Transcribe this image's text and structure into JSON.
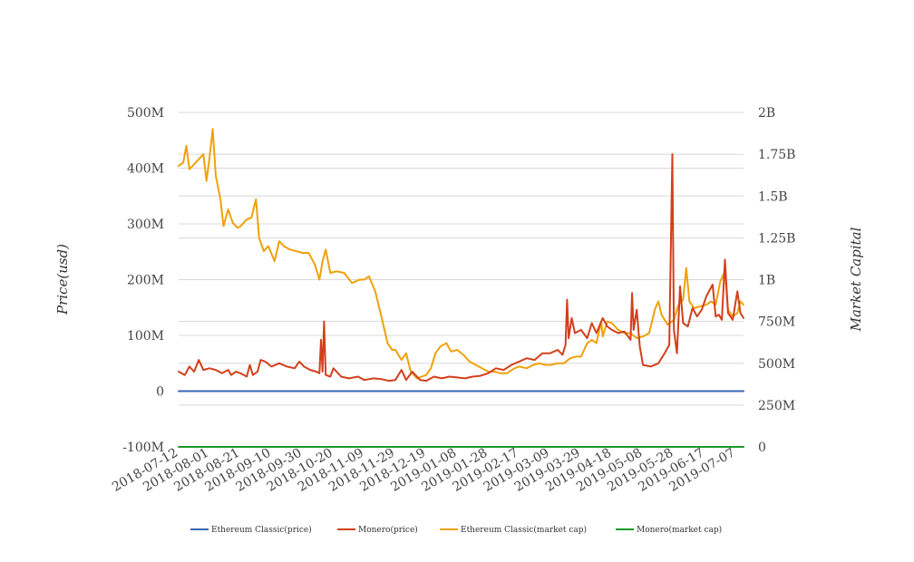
{
  "chart_data": {
    "type": "line",
    "title": "",
    "ylabel": "Price(usd)",
    "ylabel_right": "Market Capital",
    "x_ticks": [
      "2018-07-12",
      "2018-08-01",
      "2018-08-21",
      "2018-09-10",
      "2018-09-30",
      "2018-10-20",
      "2018-11-09",
      "2018-11-29",
      "2018-12-19",
      "2019-01-08",
      "2019-01-28",
      "2019-02-17",
      "2019-03-09",
      "2019-03-29",
      "2019-04-18",
      "2019-05-08",
      "2019-05-28",
      "2019-06-17",
      "2019-07-07"
    ],
    "x_range": [
      "2018-07-12",
      "2019-07-12"
    ],
    "y_left": {
      "range": [
        -100000000,
        500000000
      ],
      "ticks": [
        "500M",
        "400M",
        "300M",
        "200M",
        "100M",
        "0",
        "-100M"
      ]
    },
    "y_right": {
      "range": [
        0,
        2000000000
      ],
      "ticks": [
        "2B",
        "1.75B",
        "1.5B",
        "1.25B",
        "1B",
        "750M",
        "500M",
        "250M",
        "0"
      ]
    },
    "grid": true,
    "legend_position": "bottom",
    "colors": {
      "etc_price": "#3a64b5",
      "xmr_price": "#d2401c",
      "etc_mcap": "#f0a10a",
      "xmr_mcap": "#1a9a28",
      "grid": "#d8d8d8"
    },
    "series": [
      {
        "name": "Ethereum Classic(price)",
        "axis": "left",
        "color": "#3a64b5",
        "points": [
          [
            "2018-07-12",
            0
          ],
          [
            "2019-07-12",
            0
          ]
        ]
      },
      {
        "name": "Monero(price)",
        "axis": "right",
        "color": "#d2401c",
        "points": [
          [
            "2018-07-12",
            450000000
          ],
          [
            "2018-07-16",
            430000000
          ],
          [
            "2018-07-19",
            480000000
          ],
          [
            "2018-07-22",
            450000000
          ],
          [
            "2018-07-25",
            520000000
          ],
          [
            "2018-07-28",
            460000000
          ],
          [
            "2018-08-01",
            470000000
          ],
          [
            "2018-08-05",
            460000000
          ],
          [
            "2018-08-09",
            440000000
          ],
          [
            "2018-08-13",
            460000000
          ],
          [
            "2018-08-15",
            430000000
          ],
          [
            "2018-08-18",
            450000000
          ],
          [
            "2018-08-21",
            440000000
          ],
          [
            "2018-08-25",
            420000000
          ],
          [
            "2018-08-27",
            490000000
          ],
          [
            "2018-08-29",
            430000000
          ],
          [
            "2018-09-01",
            450000000
          ],
          [
            "2018-09-03",
            520000000
          ],
          [
            "2018-09-06",
            510000000
          ],
          [
            "2018-09-10",
            480000000
          ],
          [
            "2018-09-15",
            500000000
          ],
          [
            "2018-09-20",
            480000000
          ],
          [
            "2018-09-25",
            470000000
          ],
          [
            "2018-09-28",
            510000000
          ],
          [
            "2018-10-01",
            480000000
          ],
          [
            "2018-10-05",
            460000000
          ],
          [
            "2018-10-09",
            450000000
          ],
          [
            "2018-10-11",
            440000000
          ],
          [
            "2018-10-12",
            640000000
          ],
          [
            "2018-10-13",
            450000000
          ],
          [
            "2018-10-14",
            750000000
          ],
          [
            "2018-10-15",
            430000000
          ],
          [
            "2018-10-18",
            420000000
          ],
          [
            "2018-10-20",
            470000000
          ],
          [
            "2018-10-25",
            420000000
          ],
          [
            "2018-10-30",
            410000000
          ],
          [
            "2018-11-05",
            420000000
          ],
          [
            "2018-11-09",
            400000000
          ],
          [
            "2018-11-15",
            410000000
          ],
          [
            "2018-11-20",
            405000000
          ],
          [
            "2018-11-25",
            395000000
          ],
          [
            "2018-11-29",
            400000000
          ],
          [
            "2018-12-03",
            460000000
          ],
          [
            "2018-12-06",
            400000000
          ],
          [
            "2018-12-10",
            450000000
          ],
          [
            "2018-12-15",
            400000000
          ],
          [
            "2018-12-19",
            395000000
          ],
          [
            "2018-12-24",
            420000000
          ],
          [
            "2018-12-29",
            410000000
          ],
          [
            "2019-01-03",
            420000000
          ],
          [
            "2019-01-08",
            415000000
          ],
          [
            "2019-01-13",
            410000000
          ],
          [
            "2019-01-18",
            420000000
          ],
          [
            "2019-01-23",
            425000000
          ],
          [
            "2019-01-28",
            440000000
          ],
          [
            "2019-02-02",
            470000000
          ],
          [
            "2019-02-07",
            460000000
          ],
          [
            "2019-02-12",
            490000000
          ],
          [
            "2019-02-17",
            510000000
          ],
          [
            "2019-02-22",
            530000000
          ],
          [
            "2019-02-27",
            520000000
          ],
          [
            "2019-03-04",
            560000000
          ],
          [
            "2019-03-09",
            560000000
          ],
          [
            "2019-03-14",
            580000000
          ],
          [
            "2019-03-17",
            550000000
          ],
          [
            "2019-03-19",
            610000000
          ],
          [
            "2019-03-20",
            880000000
          ],
          [
            "2019-03-21",
            650000000
          ],
          [
            "2019-03-23",
            770000000
          ],
          [
            "2019-03-25",
            680000000
          ],
          [
            "2019-03-29",
            700000000
          ],
          [
            "2019-04-02",
            650000000
          ],
          [
            "2019-04-05",
            740000000
          ],
          [
            "2019-04-08",
            680000000
          ],
          [
            "2019-04-12",
            770000000
          ],
          [
            "2019-04-15",
            720000000
          ],
          [
            "2019-04-18",
            700000000
          ],
          [
            "2019-04-22",
            680000000
          ],
          [
            "2019-04-26",
            690000000
          ],
          [
            "2019-04-30",
            640000000
          ],
          [
            "2019-05-01",
            920000000
          ],
          [
            "2019-05-02",
            700000000
          ],
          [
            "2019-05-04",
            820000000
          ],
          [
            "2019-05-06",
            600000000
          ],
          [
            "2019-05-08",
            490000000
          ],
          [
            "2019-05-13",
            480000000
          ],
          [
            "2019-05-18",
            500000000
          ],
          [
            "2019-05-22",
            560000000
          ],
          [
            "2019-05-25",
            610000000
          ],
          [
            "2019-05-27",
            1750000000
          ],
          [
            "2019-05-28",
            700000000
          ],
          [
            "2019-05-30",
            560000000
          ],
          [
            "2019-06-01",
            960000000
          ],
          [
            "2019-06-03",
            740000000
          ],
          [
            "2019-06-06",
            720000000
          ],
          [
            "2019-06-09",
            830000000
          ],
          [
            "2019-06-12",
            780000000
          ],
          [
            "2019-06-15",
            820000000
          ],
          [
            "2019-06-18",
            900000000
          ],
          [
            "2019-06-22",
            970000000
          ],
          [
            "2019-06-24",
            780000000
          ],
          [
            "2019-06-26",
            790000000
          ],
          [
            "2019-06-28",
            760000000
          ],
          [
            "2019-06-30",
            1120000000
          ],
          [
            "2019-07-02",
            800000000
          ],
          [
            "2019-07-05",
            760000000
          ],
          [
            "2019-07-08",
            930000000
          ],
          [
            "2019-07-10",
            800000000
          ],
          [
            "2019-07-12",
            770000000
          ]
        ]
      },
      {
        "name": "Ethereum Classic(market cap)",
        "axis": "right",
        "color": "#f0a10a",
        "points": [
          [
            "2018-07-12",
            1680000000
          ],
          [
            "2018-07-15",
            1700000000
          ],
          [
            "2018-07-17",
            1800000000
          ],
          [
            "2018-07-19",
            1660000000
          ],
          [
            "2018-07-22",
            1690000000
          ],
          [
            "2018-07-25",
            1720000000
          ],
          [
            "2018-07-28",
            1750000000
          ],
          [
            "2018-07-30",
            1590000000
          ],
          [
            "2018-08-01",
            1730000000
          ],
          [
            "2018-08-03",
            1900000000
          ],
          [
            "2018-08-05",
            1620000000
          ],
          [
            "2018-08-08",
            1480000000
          ],
          [
            "2018-08-10",
            1320000000
          ],
          [
            "2018-08-13",
            1420000000
          ],
          [
            "2018-08-16",
            1340000000
          ],
          [
            "2018-08-19",
            1310000000
          ],
          [
            "2018-08-21",
            1320000000
          ],
          [
            "2018-08-25",
            1360000000
          ],
          [
            "2018-08-28",
            1370000000
          ],
          [
            "2018-08-31",
            1480000000
          ],
          [
            "2018-09-02",
            1250000000
          ],
          [
            "2018-09-05",
            1170000000
          ],
          [
            "2018-09-08",
            1200000000
          ],
          [
            "2018-09-12",
            1110000000
          ],
          [
            "2018-09-15",
            1230000000
          ],
          [
            "2018-09-18",
            1200000000
          ],
          [
            "2018-09-22",
            1180000000
          ],
          [
            "2018-09-26",
            1170000000
          ],
          [
            "2018-09-30",
            1160000000
          ],
          [
            "2018-10-04",
            1160000000
          ],
          [
            "2018-10-08",
            1090000000
          ],
          [
            "2018-10-11",
            1000000000
          ],
          [
            "2018-10-13",
            1110000000
          ],
          [
            "2018-10-15",
            1180000000
          ],
          [
            "2018-10-18",
            1040000000
          ],
          [
            "2018-10-22",
            1050000000
          ],
          [
            "2018-10-27",
            1040000000
          ],
          [
            "2018-11-01",
            980000000
          ],
          [
            "2018-11-06",
            1000000000
          ],
          [
            "2018-11-09",
            1000000000
          ],
          [
            "2018-11-12",
            1020000000
          ],
          [
            "2018-11-16",
            930000000
          ],
          [
            "2018-11-20",
            780000000
          ],
          [
            "2018-11-24",
            620000000
          ],
          [
            "2018-11-27",
            580000000
          ],
          [
            "2018-11-29",
            580000000
          ],
          [
            "2018-12-03",
            520000000
          ],
          [
            "2018-12-06",
            560000000
          ],
          [
            "2018-12-09",
            450000000
          ],
          [
            "2018-12-13",
            410000000
          ],
          [
            "2018-12-16",
            420000000
          ],
          [
            "2018-12-19",
            430000000
          ],
          [
            "2018-12-22",
            470000000
          ],
          [
            "2018-12-25",
            560000000
          ],
          [
            "2018-12-28",
            600000000
          ],
          [
            "2019-01-01",
            620000000
          ],
          [
            "2019-01-04",
            570000000
          ],
          [
            "2019-01-08",
            580000000
          ],
          [
            "2019-01-12",
            550000000
          ],
          [
            "2019-01-16",
            510000000
          ],
          [
            "2019-01-20",
            490000000
          ],
          [
            "2019-01-24",
            470000000
          ],
          [
            "2019-01-28",
            450000000
          ],
          [
            "2019-02-01",
            450000000
          ],
          [
            "2019-02-05",
            440000000
          ],
          [
            "2019-02-09",
            440000000
          ],
          [
            "2019-02-14",
            470000000
          ],
          [
            "2019-02-17",
            480000000
          ],
          [
            "2019-02-22",
            470000000
          ],
          [
            "2019-02-26",
            490000000
          ],
          [
            "2019-03-02",
            500000000
          ],
          [
            "2019-03-06",
            490000000
          ],
          [
            "2019-03-09",
            490000000
          ],
          [
            "2019-03-14",
            500000000
          ],
          [
            "2019-03-18",
            500000000
          ],
          [
            "2019-03-22",
            530000000
          ],
          [
            "2019-03-26",
            540000000
          ],
          [
            "2019-03-29",
            540000000
          ],
          [
            "2019-04-02",
            620000000
          ],
          [
            "2019-04-05",
            640000000
          ],
          [
            "2019-04-08",
            620000000
          ],
          [
            "2019-04-11",
            750000000
          ],
          [
            "2019-04-12",
            660000000
          ],
          [
            "2019-04-15",
            750000000
          ],
          [
            "2019-04-18",
            740000000
          ],
          [
            "2019-04-22",
            700000000
          ],
          [
            "2019-04-26",
            680000000
          ],
          [
            "2019-04-30",
            680000000
          ],
          [
            "2019-05-04",
            650000000
          ],
          [
            "2019-05-08",
            660000000
          ],
          [
            "2019-05-12",
            680000000
          ],
          [
            "2019-05-16",
            830000000
          ],
          [
            "2019-05-18",
            870000000
          ],
          [
            "2019-05-20",
            790000000
          ],
          [
            "2019-05-24",
            730000000
          ],
          [
            "2019-05-28",
            760000000
          ],
          [
            "2019-05-31",
            850000000
          ],
          [
            "2019-06-03",
            880000000
          ],
          [
            "2019-06-05",
            1070000000
          ],
          [
            "2019-06-07",
            870000000
          ],
          [
            "2019-06-10",
            830000000
          ],
          [
            "2019-06-14",
            840000000
          ],
          [
            "2019-06-18",
            850000000
          ],
          [
            "2019-06-21",
            870000000
          ],
          [
            "2019-06-24",
            850000000
          ],
          [
            "2019-06-27",
            990000000
          ],
          [
            "2019-06-30",
            1050000000
          ],
          [
            "2019-07-02",
            820000000
          ],
          [
            "2019-07-05",
            780000000
          ],
          [
            "2019-07-08",
            800000000
          ],
          [
            "2019-07-10",
            870000000
          ],
          [
            "2019-07-12",
            850000000
          ]
        ]
      },
      {
        "name": "Monero(market cap)",
        "axis": "right",
        "color": "#1a9a28",
        "points": [
          [
            "2018-07-12",
            0
          ],
          [
            "2019-07-12",
            0
          ]
        ]
      }
    ]
  }
}
